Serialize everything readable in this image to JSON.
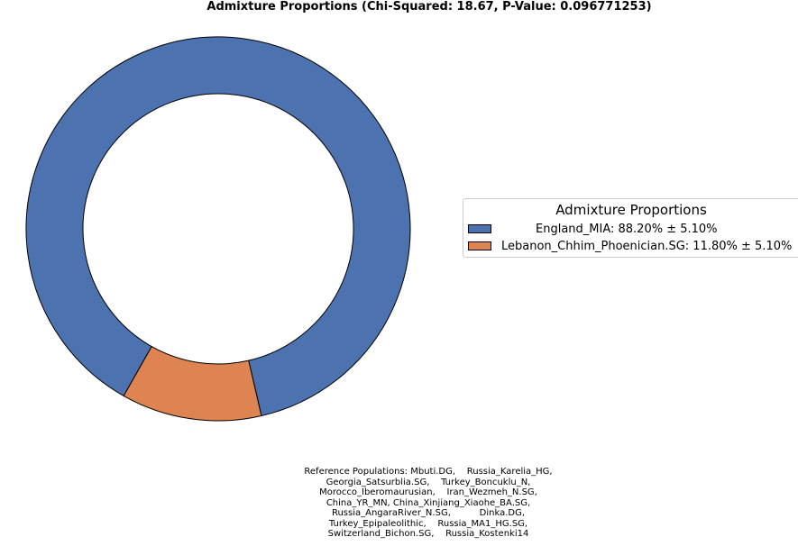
{
  "chart_data": {
    "type": "pie",
    "subtype": "donut",
    "title": "Admixture Proportions (Chi-Squared: 18.67, P-Value: 0.096771253)",
    "series": [
      {
        "name": "England_MIA",
        "value": 88.2,
        "error": 5.1,
        "color": "#4c72b0"
      },
      {
        "name": "Lebanon_Chhim_Phoenician.SG",
        "value": 11.8,
        "error": 5.1,
        "color": "#dd8452"
      }
    ],
    "legend": {
      "title": "Admixture Proportions",
      "placement": "right",
      "entries": [
        "England_MIA: 88.20% ± 5.10%",
        "Lebanon_Chhim_Phoenician.SG: 11.80% ± 5.10%"
      ]
    },
    "footnote_lines": [
      "Reference Populations: Mbuti.DG,    Russia_Karelia_HG,",
      "Georgia_Satsurblia.SG,    Turkey_Boncuklu_N,",
      "Morocco_Iberomaurusian,    Iran_Wezmeh_N.SG,",
      "China_YR_MN, China_Xinjiang_Xiaohe_BA.SG,",
      "Russia_AngaraRiver_N.SG,          Dinka.DG,",
      "Turkey_Epipaleolithic,    Russia_MA1_HG.SG,",
      "Switzerland_Bichon.SG,    Russia_Kostenki14"
    ]
  }
}
